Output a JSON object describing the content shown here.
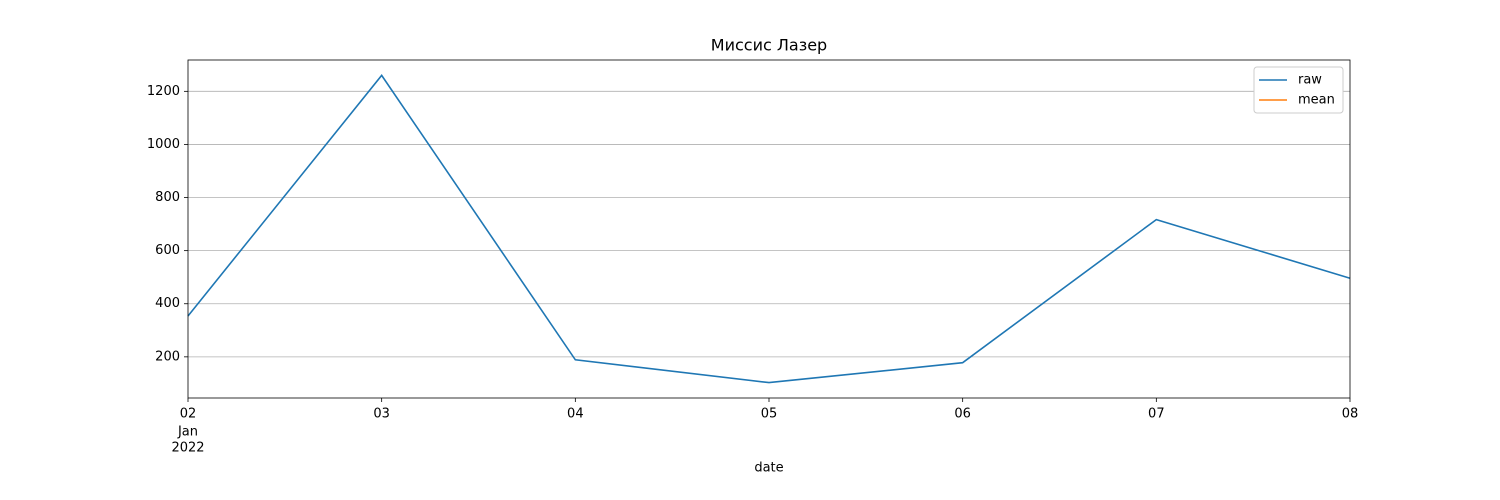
{
  "chart_data": {
    "type": "line",
    "title": "Миссис Лазер",
    "xlabel": "date",
    "x": [
      "2022-01-02",
      "2022-01-03",
      "2022-01-04",
      "2022-01-05",
      "2022-01-06",
      "2022-01-07",
      "2022-01-08"
    ],
    "series": [
      {
        "name": "raw",
        "color": "#1f77b4",
        "values": [
          354,
          1260,
          189,
          103,
          178,
          717,
          496
        ]
      },
      {
        "name": "mean",
        "color": "#ff7f0e",
        "values": [
          null,
          null,
          null,
          null,
          null,
          null,
          null
        ]
      }
    ],
    "xlim": [
      "2022-01-02",
      "2022-01-08"
    ],
    "xticks": [
      {
        "value": "2022-01-02",
        "label": "02"
      },
      {
        "value": "2022-01-03",
        "label": "03"
      },
      {
        "value": "2022-01-04",
        "label": "04"
      },
      {
        "value": "2022-01-05",
        "label": "05"
      },
      {
        "value": "2022-01-06",
        "label": "06"
      },
      {
        "value": "2022-01-07",
        "label": "07"
      },
      {
        "value": "2022-01-08",
        "label": "08"
      }
    ],
    "x_first_tick_sublabels": [
      "Jan",
      "2022"
    ],
    "ylim": [
      45,
      1318
    ],
    "yticks": [
      200,
      400,
      600,
      800,
      1000,
      1200
    ],
    "grid": "y",
    "legend": "upper right"
  }
}
